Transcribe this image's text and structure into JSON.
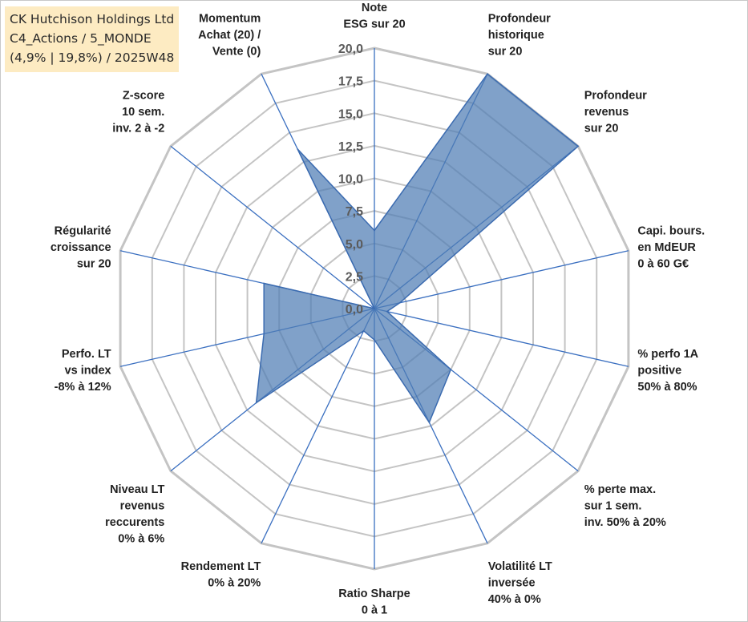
{
  "header": {
    "line1": "CK Hutchison Holdings Ltd",
    "line2": "C4_Actions / 5_MONDE",
    "line3": "(4,9% | 19,8%) / 2025W48"
  },
  "colors": {
    "fill": "#4f7db4",
    "fill_opacity": 0.72,
    "stroke": "#3b6bb0",
    "axis": "#3a6fc0",
    "grid": "#c4c4c4",
    "background": "#ffffff",
    "title_box": "#fdebc2"
  },
  "chart_data": {
    "type": "radar",
    "title": "",
    "rmax": 20,
    "ticks": [
      "0,0",
      "2,5",
      "5,0",
      "7,5",
      "10,0",
      "12,5",
      "15,0",
      "17,5",
      "20,0"
    ],
    "grid": true,
    "categories": [
      [
        "Note",
        "ESG sur 20"
      ],
      [
        "Profondeur",
        "historique",
        "sur 20"
      ],
      [
        "Profondeur",
        "revenus",
        "sur 20"
      ],
      [
        "Capi. bours.",
        "en MdEUR",
        "0 à 60 G€"
      ],
      [
        "% perfo 1A",
        "positive",
        "50% à 80%"
      ],
      [
        "% perte max.",
        "sur 1 sem.",
        "inv. 50% à 20%"
      ],
      [
        "Volatilité LT",
        "inversée",
        "40% à 0%"
      ],
      [
        "Ratio Sharpe",
        "0 à 1"
      ],
      [
        "Rendement LT",
        "0% à 20%"
      ],
      [
        "Niveau LT",
        "revenus",
        "reccurents",
        "0% à 6%"
      ],
      [
        "Perfo. LT",
        "vs index",
        "-8% à 12%"
      ],
      [
        "Régularité",
        "croissance",
        "sur 20"
      ],
      [
        "Z-score",
        "10 sem.",
        "inv. 2 à -2"
      ],
      [
        "Momentum",
        "Achat (20) /",
        "Vente (0)"
      ]
    ],
    "values": [
      6.0,
      20.0,
      20.0,
      2.0,
      1.0,
      7.5,
      9.7,
      2.4,
      1.9,
      11.6,
      8.7,
      8.7,
      0.0,
      13.6
    ]
  }
}
